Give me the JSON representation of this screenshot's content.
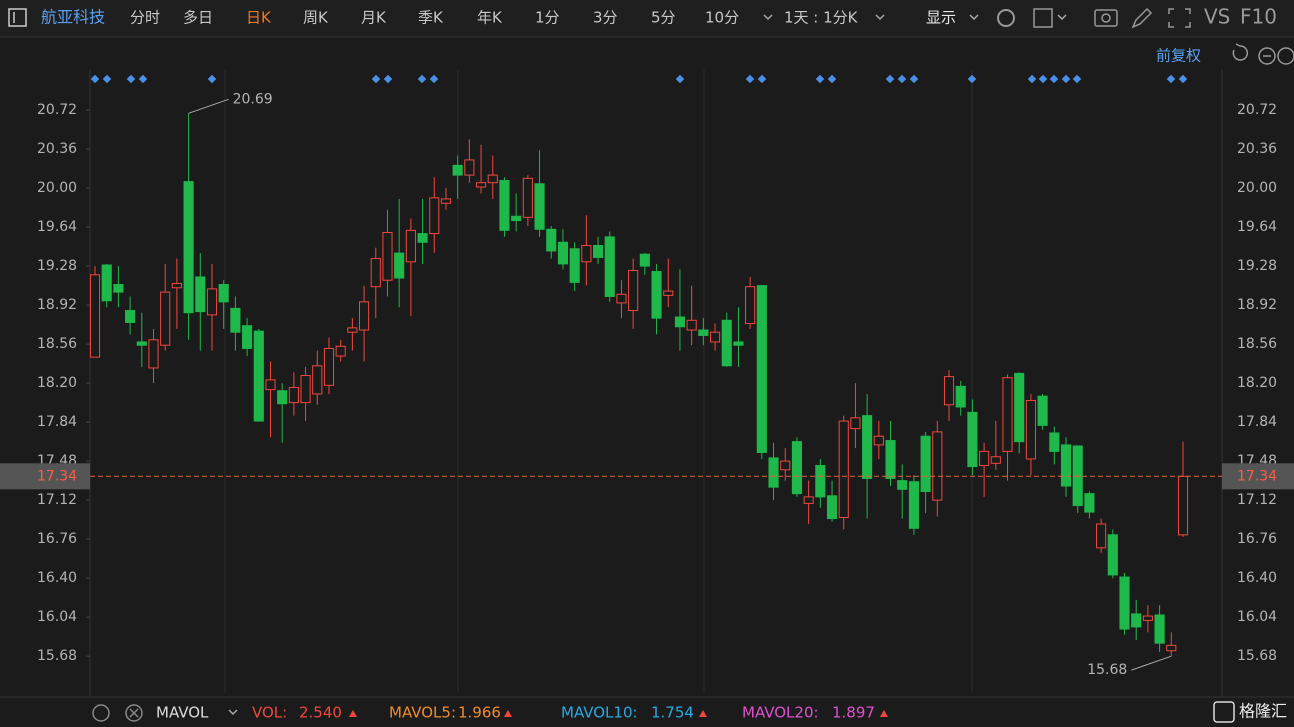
{
  "toolbar": {
    "stock_name": "航亚科技",
    "tabs": [
      "分时",
      "多日",
      "日K",
      "周K",
      "月K",
      "季K",
      "年K",
      "1分",
      "3分",
      "5分",
      "10分"
    ],
    "active_tab": "日K",
    "period": "1天 : 1分K",
    "display": "显示",
    "vs": "VS",
    "f10": "F10"
  },
  "adjust": "前复权",
  "chart_data": {
    "type": "candlestick",
    "up_color": "#f0483e",
    "down_color": "#1fb84b",
    "ylim": [
      15.34,
      21.09
    ],
    "yticks": [
      {
        "value": 20.72,
        "label": "20.72"
      },
      {
        "value": 20.36,
        "label": "20.36"
      },
      {
        "value": 20.0,
        "label": "20.00"
      },
      {
        "value": 19.64,
        "label": "19.64"
      },
      {
        "value": 19.28,
        "label": "19.28"
      },
      {
        "value": 18.92,
        "label": "18.92"
      },
      {
        "value": 18.56,
        "label": "18.56"
      },
      {
        "value": 18.2,
        "label": "18.20"
      },
      {
        "value": 17.84,
        "label": "17.84"
      },
      {
        "value": 17.48,
        "label": "17.48"
      },
      {
        "value": 17.12,
        "label": "17.12"
      },
      {
        "value": 16.76,
        "label": "16.76"
      },
      {
        "value": 16.4,
        "label": "16.40"
      },
      {
        "value": 16.04,
        "label": "16.04"
      },
      {
        "value": 15.68,
        "label": "15.68"
      }
    ],
    "last_price": {
      "value": 17.34,
      "label": "17.34"
    },
    "max_label": "20.69",
    "min_label": "15.68",
    "open": [
      18.44,
      19.29,
      19.11,
      18.87,
      18.58,
      18.34,
      18.55,
      19.08,
      20.06,
      19.18,
      18.83,
      19.11,
      18.89,
      18.73,
      18.68,
      18.14,
      18.13,
      18.02,
      18.02,
      18.1,
      18.18,
      18.45,
      18.67,
      18.69,
      19.09,
      19.15,
      19.4,
      19.32,
      19.58,
      19.58,
      19.86,
      20.21,
      20.12,
      20.01,
      20.05,
      20.07,
      19.74,
      19.73,
      20.04,
      19.62,
      19.5,
      19.44,
      19.32,
      19.47,
      19.55,
      18.94,
      18.87,
      19.39,
      19.23,
      19.01,
      18.81,
      18.69,
      18.69,
      18.58,
      18.78,
      18.58,
      18.75,
      19.1,
      17.51,
      17.4,
      17.66,
      17.09,
      17.44,
      17.16,
      16.96,
      17.78,
      17.9,
      17.63,
      17.67,
      17.3,
      17.29,
      17.71,
      17.12,
      18.0,
      18.17,
      17.93,
      17.44,
      17.46,
      17.57,
      18.29,
      17.5,
      18.08,
      17.74,
      17.63,
      17.62,
      17.18,
      16.68,
      16.8,
      16.41,
      16.07,
      16.01,
      16.06,
      15.73,
      16.8
    ],
    "high": [
      19.28,
      19.3,
      19.28,
      19.0,
      18.85,
      18.7,
      19.3,
      19.35,
      20.69,
      19.4,
      19.3,
      19.15,
      19.0,
      18.8,
      18.7,
      18.4,
      18.2,
      18.3,
      18.35,
      18.5,
      18.62,
      18.6,
      18.8,
      19.1,
      19.45,
      19.8,
      19.9,
      19.72,
      19.9,
      20.1,
      20.0,
      20.3,
      20.45,
      20.4,
      20.3,
      20.1,
      19.95,
      20.12,
      20.35,
      19.65,
      19.62,
      19.5,
      19.75,
      19.55,
      19.6,
      19.15,
      19.35,
      19.4,
      19.3,
      19.35,
      19.25,
      19.1,
      18.8,
      18.75,
      18.85,
      18.9,
      19.18,
      19.1,
      17.65,
      17.6,
      17.7,
      17.3,
      17.5,
      17.3,
      17.9,
      18.2,
      18.1,
      17.85,
      17.85,
      17.45,
      17.35,
      17.75,
      17.85,
      18.32,
      18.22,
      18.05,
      17.65,
      17.85,
      18.28,
      18.3,
      18.1,
      18.1,
      17.8,
      17.7,
      17.62,
      17.2,
      16.95,
      16.85,
      16.45,
      16.2,
      16.15,
      16.15,
      15.9,
      17.66
    ],
    "low": [
      18.44,
      18.9,
      18.9,
      18.65,
      18.35,
      18.2,
      18.5,
      18.7,
      18.6,
      18.5,
      18.5,
      18.7,
      18.5,
      18.45,
      17.85,
      17.7,
      17.65,
      17.9,
      17.85,
      18.0,
      18.1,
      18.4,
      18.5,
      18.4,
      18.8,
      19.0,
      18.9,
      18.82,
      19.3,
      19.4,
      19.8,
      19.9,
      20.05,
      19.95,
      19.9,
      19.55,
      19.6,
      19.65,
      19.55,
      19.35,
      19.25,
      19.05,
      19.1,
      19.3,
      18.95,
      18.8,
      18.7,
      19.2,
      18.65,
      18.9,
      18.5,
      18.55,
      18.55,
      18.5,
      18.35,
      18.35,
      18.7,
      17.5,
      17.12,
      17.3,
      17.15,
      16.9,
      17.05,
      16.92,
      16.85,
      17.6,
      16.95,
      17.5,
      17.25,
      16.95,
      16.8,
      17.0,
      16.97,
      17.85,
      17.9,
      17.35,
      17.15,
      17.4,
      17.3,
      17.55,
      17.35,
      17.77,
      17.45,
      17.15,
      17.0,
      16.95,
      16.63,
      16.4,
      15.88,
      15.83,
      15.9,
      15.72,
      15.68,
      16.78
    ],
    "close": [
      19.2,
      18.96,
      19.04,
      18.76,
      18.55,
      18.6,
      19.04,
      19.12,
      18.85,
      18.86,
      19.07,
      18.95,
      18.67,
      18.52,
      17.85,
      18.23,
      18.01,
      18.16,
      18.27,
      18.36,
      18.52,
      18.54,
      18.71,
      18.95,
      19.35,
      19.59,
      19.17,
      19.61,
      19.5,
      19.91,
      19.9,
      20.12,
      20.26,
      20.05,
      20.12,
      19.61,
      19.7,
      20.09,
      19.62,
      19.42,
      19.3,
      19.13,
      19.47,
      19.36,
      19.0,
      19.02,
      19.24,
      19.28,
      18.8,
      19.05,
      18.72,
      18.78,
      18.64,
      18.67,
      18.36,
      18.55,
      19.09,
      17.56,
      17.24,
      17.48,
      17.18,
      17.15,
      17.15,
      16.95,
      17.85,
      17.88,
      17.32,
      17.71,
      17.32,
      17.22,
      16.86,
      17.2,
      17.75,
      18.26,
      17.98,
      17.43,
      17.57,
      17.52,
      18.25,
      17.66,
      18.04,
      17.81,
      17.57,
      17.25,
      17.07,
      17.01,
      16.9,
      16.43,
      15.93,
      15.95,
      16.05,
      15.8,
      15.78,
      17.34
    ]
  },
  "indicator_bar": {
    "name": "MAVOL",
    "items": [
      {
        "label": "VOL:",
        "value": "2.540",
        "color": "#f0483e"
      },
      {
        "label": "MAVOL5:",
        "value": "1.966",
        "color": "#f08c2e"
      },
      {
        "label": "MAVOL10:",
        "value": "1.754",
        "color": "#2aa9e0"
      },
      {
        "label": "MAVOL20:",
        "value": "1.897",
        "color": "#e050d0"
      }
    ]
  },
  "brand": "格隆汇"
}
